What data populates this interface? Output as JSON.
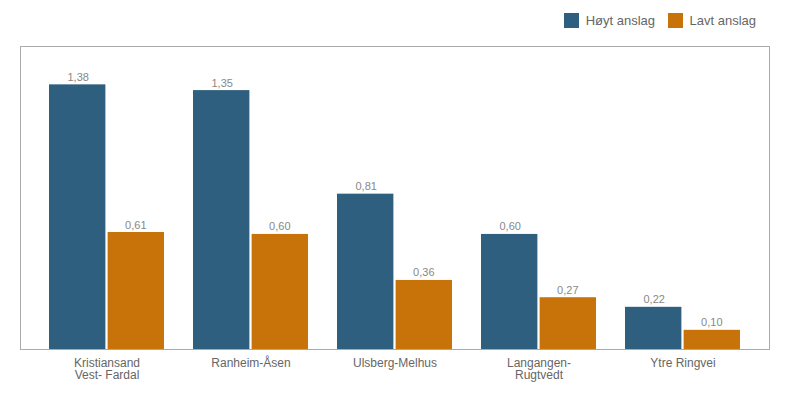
{
  "chart_data": {
    "type": "bar",
    "categories": [
      "Kristiansand\nVest- Fardal",
      "Ranheim-Åsen",
      "Ulsberg-Melhus",
      "Langangen-\nRugtvedt",
      "Ytre Ringvei"
    ],
    "series": [
      {
        "name": "Høyt anslag",
        "color": "#2E5F7E",
        "values": [
          1.38,
          1.35,
          0.81,
          0.6,
          0.22
        ],
        "value_labels": [
          "1,38",
          "1,35",
          "0,81",
          "0,60",
          "0,22"
        ]
      },
      {
        "name": "Lavt anslag",
        "color": "#C8720A",
        "values": [
          0.61,
          0.6,
          0.36,
          0.27,
          0.1
        ],
        "value_labels": [
          "0,61",
          "0,60",
          "0,36",
          "0,27",
          "0,10"
        ]
      }
    ],
    "ylim": [
      0,
      1.58
    ],
    "legend": "upper right",
    "data_labels": true,
    "tick_labels": "x",
    "grid": false
  }
}
